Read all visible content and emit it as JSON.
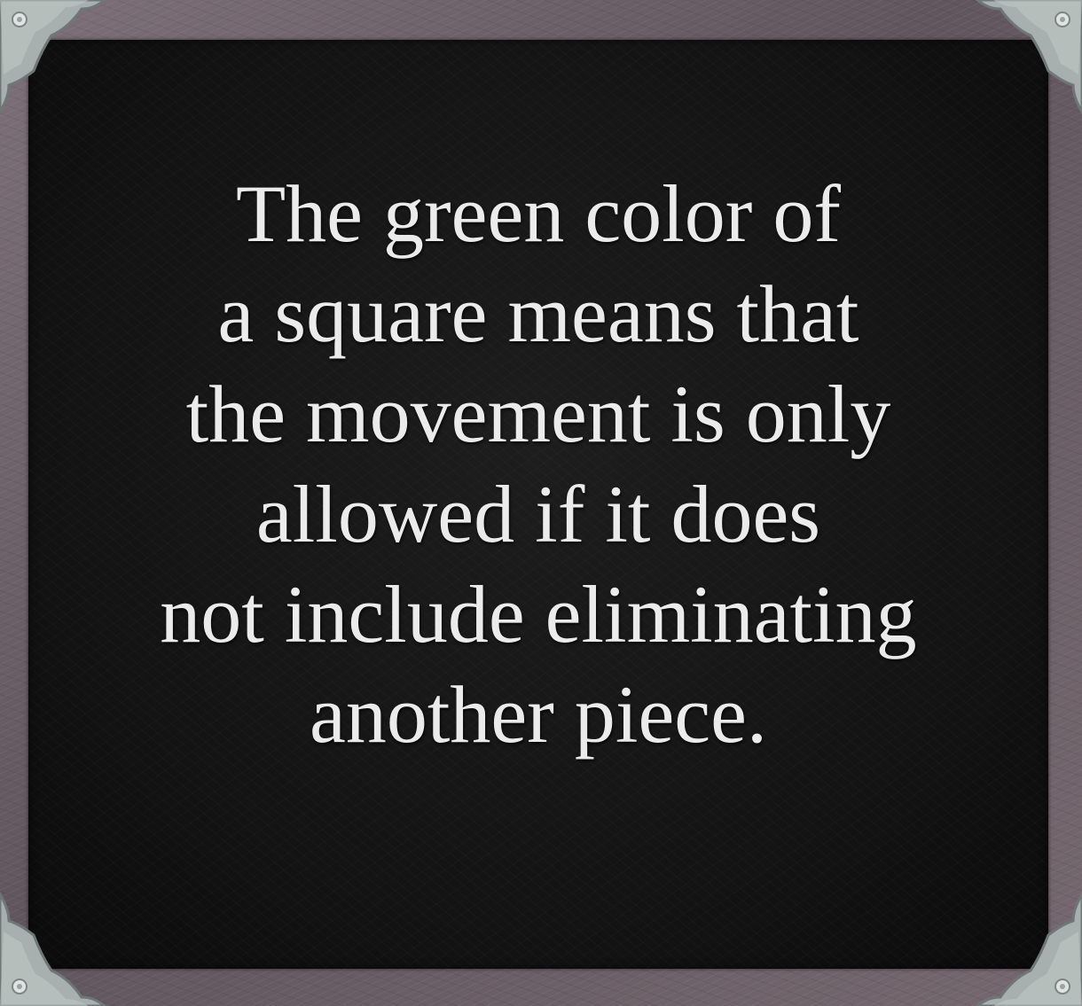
{
  "message": {
    "lines": [
      "The green color of",
      "a square means that",
      "the movement is only",
      "allowed if it does",
      "not include eliminating",
      "another piece."
    ]
  },
  "icons": {
    "corners": "metal-corner-bracket-icon"
  },
  "colors": {
    "frame": "#6b5f66",
    "panel": "#151515",
    "text": "#ebebeb",
    "metal": "#aab3b1"
  }
}
